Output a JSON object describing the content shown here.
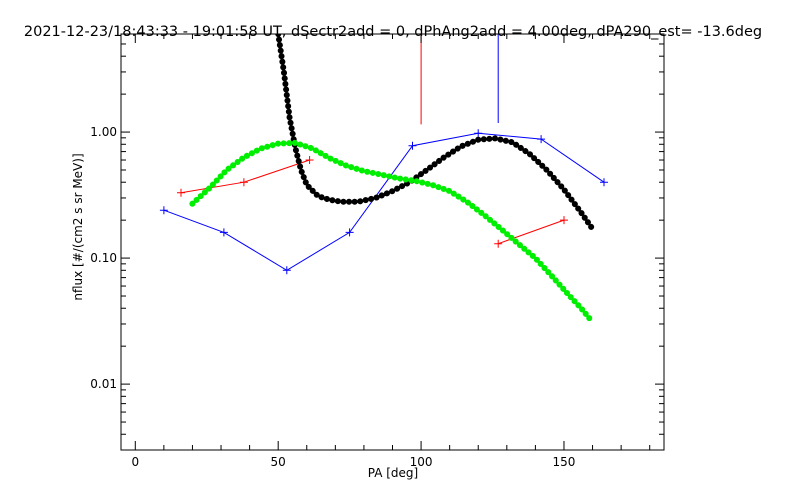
{
  "chart_data": {
    "type": "line",
    "title": "2021-12-23/18:43:33 - 19:01:58 UT, dSectr2add = 0, dPhAng2add = 4.00deg, dPA290_est= -13.6deg",
    "xlabel": "PA [deg]",
    "ylabel": "nflux [#/(cm2 s sr MeV)]",
    "xlim": [
      -5,
      185
    ],
    "ylim": [
      0.003,
      6
    ],
    "yscale": "log",
    "xticks": [
      0,
      50,
      100,
      150
    ],
    "xtick_labels": [
      "0",
      "50",
      "100",
      "150"
    ],
    "yticks": [
      0.01,
      0.1,
      1.0
    ],
    "ytick_labels": [
      "0.01",
      "0.10",
      "1.00"
    ],
    "grid": false,
    "series": [
      {
        "color": "#0000ff",
        "style": "line-plus",
        "x": [
          10,
          31,
          53,
          75,
          97,
          120,
          142,
          164
        ],
        "y": [
          0.24,
          0.16,
          0.08,
          0.16,
          0.78,
          0.98,
          0.88,
          0.4
        ]
      },
      {
        "color": "#ff0000",
        "style": "line-plus",
        "x": [
          16,
          38,
          61
        ],
        "y": [
          0.33,
          0.4,
          0.6
        ]
      },
      {
        "color": "#ff0000",
        "style": "line-plus",
        "x": [
          127,
          150
        ],
        "y": [
          0.13,
          0.2
        ]
      },
      {
        "color": "#000000",
        "style": "thick-dotted",
        "x": [
          50,
          52,
          54,
          56,
          58,
          60,
          64,
          68,
          72,
          78,
          84,
          90,
          96,
          102,
          108,
          114,
          120,
          126,
          132,
          138,
          144,
          150,
          156,
          160
        ],
        "y": [
          6.0,
          3.0,
          1.3,
          0.75,
          0.5,
          0.38,
          0.31,
          0.29,
          0.28,
          0.28,
          0.3,
          0.34,
          0.4,
          0.5,
          0.63,
          0.77,
          0.87,
          0.89,
          0.83,
          0.67,
          0.5,
          0.35,
          0.23,
          0.17
        ]
      },
      {
        "color": "#00ee00",
        "style": "thick-dotted",
        "x": [
          20,
          26,
          32,
          38,
          44,
          50,
          56,
          62,
          68,
          74,
          80,
          86,
          92,
          98,
          104,
          110,
          116,
          122,
          128,
          134,
          140,
          146,
          152,
          156,
          160
        ],
        "y": [
          0.27,
          0.36,
          0.5,
          0.63,
          0.74,
          0.81,
          0.82,
          0.74,
          0.62,
          0.54,
          0.49,
          0.46,
          0.43,
          0.41,
          0.38,
          0.34,
          0.28,
          0.22,
          0.17,
          0.13,
          0.1,
          0.071,
          0.05,
          0.04,
          0.031
        ]
      },
      {
        "color": "#ff0000",
        "style": "vline",
        "x": [
          100,
          100
        ],
        "y": [
          6,
          1.15
        ]
      },
      {
        "color": "#0000ff",
        "style": "vline",
        "x": [
          127,
          127
        ],
        "y": [
          6,
          1.18
        ]
      }
    ]
  }
}
